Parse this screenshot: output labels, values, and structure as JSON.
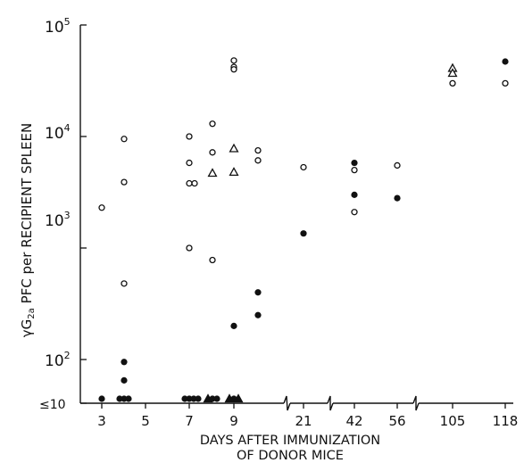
{
  "chart_data": {
    "type": "scatter",
    "yscale": "log",
    "xlabel_line1": "DAYS AFTER IMMUNIZATION",
    "xlabel_line2": "OF DONOR MICE",
    "ylabel_prefix": "γG",
    "ylabel_sub": "2a",
    "ylabel_main": "PFC per RECIPIENT SPLEEN",
    "x_tick_labels": [
      "3",
      "5",
      "7",
      "9",
      "21",
      "42",
      "56",
      "105",
      "118"
    ],
    "y_tick_labels": [
      {
        "base": "10",
        "exp": "5"
      },
      {
        "base": "10",
        "exp": "4"
      },
      {
        "base": "10",
        "exp": "3"
      },
      {
        "base": "10",
        "exp": "2"
      },
      {
        "base": "≤10",
        "exp": ""
      }
    ],
    "ylim": [
      10,
      100000
    ],
    "x_axis_breaks": [
      "9-21",
      "21-42",
      "56-105"
    ],
    "marker_legend": {
      "open_circle": "○",
      "filled_circle": "●",
      "open_triangle": "△",
      "filled_triangle": "▲"
    },
    "series": [
      {
        "marker": "open_circle",
        "points": [
          {
            "x": "3",
            "y": 2300
          },
          {
            "x": "4",
            "y": 9500
          },
          {
            "x": "4",
            "y": 3900
          },
          {
            "x": "4",
            "y": 480
          },
          {
            "x": "7",
            "y": 3800
          },
          {
            "x": "7",
            "y": 3800
          },
          {
            "x": "7",
            "y": 1000
          },
          {
            "x": "7",
            "y": 10000
          },
          {
            "x": "7",
            "y": 5800
          },
          {
            "x": "8",
            "y": 13000
          },
          {
            "x": "8",
            "y": 7200
          },
          {
            "x": "8",
            "y": 780
          },
          {
            "x": "9",
            "y": 48000
          },
          {
            "x": "9",
            "y": 42000
          },
          {
            "x": "9",
            "y": 40000
          },
          {
            "x": "10",
            "y": 7500
          },
          {
            "x": "10",
            "y": 6100
          },
          {
            "x": "21",
            "y": 5300
          },
          {
            "x": "42",
            "y": 5000
          },
          {
            "x": "42",
            "y": 2100
          },
          {
            "x": "56",
            "y": 5500
          },
          {
            "x": "105",
            "y": 30000
          },
          {
            "x": "118",
            "y": 30000
          }
        ]
      },
      {
        "marker": "filled_circle",
        "points": [
          {
            "x": "4",
            "y": 95
          },
          {
            "x": "4",
            "y": 65
          },
          {
            "x": "9",
            "y": 200
          },
          {
            "x": "10",
            "y": 400
          },
          {
            "x": "10",
            "y": 250
          },
          {
            "x": "21",
            "y": 1350
          },
          {
            "x": "42",
            "y": 5800
          },
          {
            "x": "42",
            "y": 3000
          },
          {
            "x": "56",
            "y": 2800
          },
          {
            "x": "118",
            "y": 47000
          }
        ]
      },
      {
        "marker": "open_triangle",
        "points": [
          {
            "x": "8",
            "y": 4700
          },
          {
            "x": "9",
            "y": 7800
          },
          {
            "x": "9",
            "y": 4800
          },
          {
            "x": "105",
            "y": 41000
          },
          {
            "x": "105",
            "y": 37000
          }
        ]
      },
      {
        "marker": "filled_triangle",
        "points": []
      }
    ],
    "baseline_points": [
      {
        "x": "3",
        "marker": "filled_circle"
      },
      {
        "x": "4",
        "marker": "filled_circle"
      },
      {
        "x": "4",
        "marker": "filled_circle"
      },
      {
        "x": "4",
        "marker": "filled_circle"
      },
      {
        "x": "7",
        "marker": "filled_circle"
      },
      {
        "x": "7",
        "marker": "filled_circle"
      },
      {
        "x": "7",
        "marker": "filled_circle"
      },
      {
        "x": "7",
        "marker": "filled_circle"
      },
      {
        "x": "8",
        "marker": "filled_circle"
      },
      {
        "x": "8",
        "marker": "filled_circle"
      },
      {
        "x": "8",
        "marker": "filled_triangle"
      },
      {
        "x": "9",
        "marker": "filled_circle"
      },
      {
        "x": "9",
        "marker": "filled_triangle"
      },
      {
        "x": "9",
        "marker": "filled_triangle"
      }
    ]
  }
}
